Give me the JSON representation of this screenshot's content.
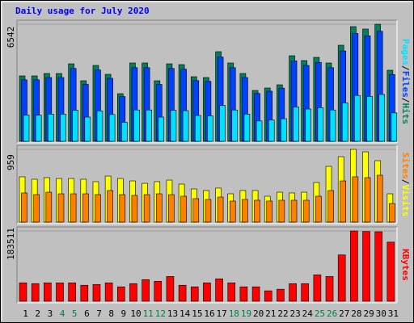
{
  "title": "Daily usage for July 2020",
  "chart_data": [
    {
      "type": "bar",
      "legend_separator": "/",
      "series": [
        {
          "name": "Pages",
          "color": "#00e0ff",
          "values": [
            1462,
            1462,
            1516,
            1516,
            1732,
            1354,
            1696,
            1498,
            1065,
            1751,
            1751,
            1354,
            1732,
            1714,
            1444,
            1426,
            2003,
            1751,
            1516,
            1137,
            1191,
            1263,
            1913,
            1805,
            1877,
            1751,
            2148,
            2563,
            2509,
            2617,
            1588
          ]
        },
        {
          "name": "Files",
          "color": "#0040ff",
          "values": [
            3436,
            3436,
            3563,
            3563,
            4071,
            3181,
            3987,
            3520,
            2502,
            4114,
            4114,
            3181,
            4071,
            4029,
            3393,
            3350,
            4708,
            4114,
            3563,
            2671,
            2799,
            2969,
            4495,
            4241,
            4410,
            4114,
            5047,
            6023,
            5896,
            6149,
            3733
          ]
        },
        {
          "name": "Hits",
          "color": "#00805c",
          "values": [
            3655,
            3655,
            3790,
            3790,
            4331,
            3384,
            4241,
            3745,
            2662,
            4377,
            4377,
            3384,
            4331,
            4286,
            3610,
            3564,
            5008,
            4377,
            3790,
            2842,
            2978,
            3158,
            4782,
            4512,
            4692,
            4377,
            5369,
            6407,
            6272,
            6542,
            3971
          ]
        }
      ],
      "ylim": [
        0,
        6542
      ],
      "yticks": [
        6542
      ]
    },
    {
      "type": "bar",
      "legend_separator": "/",
      "series": [
        {
          "name": "Sites",
          "color": "#ff8000",
          "values": [
            384,
            362,
            394,
            373,
            373,
            373,
            362,
            416,
            362,
            352,
            362,
            373,
            362,
            341,
            309,
            298,
            330,
            277,
            298,
            288,
            277,
            288,
            288,
            288,
            341,
            416,
            543,
            597,
            586,
            618,
            245
          ]
        },
        {
          "name": "Visits",
          "color": "#ffff00",
          "values": [
            597,
            565,
            586,
            575,
            575,
            565,
            533,
            607,
            575,
            543,
            511,
            533,
            554,
            501,
            437,
            416,
            448,
            373,
            416,
            416,
            341,
            394,
            384,
            394,
            522,
            735,
            863,
            959,
            927,
            810,
            373
          ]
        }
      ],
      "ylim": [
        0,
        959
      ],
      "yticks": [
        959
      ]
    },
    {
      "type": "bar",
      "categories": [
        "1",
        "2",
        "3",
        "4",
        "5",
        "6",
        "7",
        "8",
        "9",
        "10",
        "11",
        "12",
        "13",
        "14",
        "15",
        "16",
        "17",
        "18",
        "19",
        "20",
        "21",
        "22",
        "23",
        "24",
        "25",
        "26",
        "27",
        "28",
        "29",
        "30",
        "31"
      ],
      "highlighted": [
        3,
        4,
        10,
        11,
        17,
        18,
        24,
        25
      ],
      "highlight_color": "#008040",
      "series": [
        {
          "name": "KBytes",
          "color": "#ff0000",
          "values": [
            47964,
            45879,
            47964,
            47964,
            47964,
            41708,
            43793,
            47964,
            37537,
            45879,
            56306,
            52135,
            64647,
            41708,
            37537,
            47964,
            58391,
            47964,
            37537,
            37537,
            27110,
            31281,
            45879,
            45879,
            68818,
            64647,
            120953,
            183511,
            182000,
            181430,
            154320
          ]
        }
      ],
      "ylim": [
        0,
        183511
      ],
      "yticks": [
        183511
      ]
    }
  ]
}
